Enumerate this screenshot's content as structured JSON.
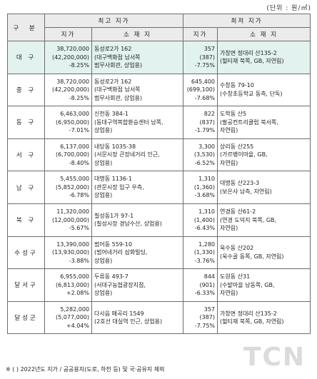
{
  "unit": "(단위 : 원/㎡)",
  "headers": {
    "gubun": "구 분",
    "highest": "최고 지가",
    "lowest": "최저 지가",
    "price": "지가",
    "location": "소 재 지"
  },
  "rows": [
    {
      "district": "대 구",
      "high_price": "38,720,000",
      "high_prev": "(42,200,000)",
      "high_change": "-8.25%",
      "high_loc1": "동성로2가 162",
      "high_loc2": "(대구백화점 남서쪽",
      "high_loc3": "범무사회관, 상업용)",
      "low_price": "357",
      "low_prev": "(387)",
      "low_change": "-7.75%",
      "low_loc1": "가창면 정대리 산135-2",
      "low_loc2": "(헐티재 북쪽, GB, 자연림)",
      "low_loc3": ""
    },
    {
      "district": "중 구",
      "high_price": "38,720,000",
      "high_prev": "(42,200,000)",
      "high_change": "-8.25%",
      "high_loc1": "동성로2가 162",
      "high_loc2": "(대구백화점 남서쪽",
      "high_loc3": "범무사회관, 상업용)",
      "low_price": "645,400",
      "low_prev": "(699,100)",
      "low_change": "-7.68%",
      "low_loc1": "수창동 79-10",
      "low_loc2": "(수창초등학교 동측, 단독)",
      "low_loc3": ""
    },
    {
      "district": "동 구",
      "high_price": "6,463,000",
      "high_prev": "(6,950,000)",
      "high_change": "-7.01%",
      "high_loc1": "신천동 384-1",
      "high_loc2": "(동대구역복합환승센터 남쪽,",
      "high_loc3": "상업용)",
      "low_price": "822",
      "low_prev": "(837)",
      "low_change": "-1.79%",
      "low_loc1": "도학동 산5",
      "low_loc2": "(팔공컨트리클럽 북서쪽,",
      "low_loc3": "자연림)"
    },
    {
      "district": "서 구",
      "high_price": "6,137,000",
      "high_prev": "(6,700,000)",
      "high_change": "-8.40%",
      "high_loc1": "내당동 1035-38",
      "high_loc2": "(서문시장 큰장네거리 인근,",
      "high_loc3": "상업용)",
      "low_price": "3,300",
      "low_prev": "(3,530)",
      "low_change": "-6.52%",
      "low_loc1": "상리동 산255",
      "low_loc2": "(가르뱅이마을, GB,",
      "low_loc3": "자연림)"
    },
    {
      "district": "남 구",
      "high_price": "5,455,000",
      "high_prev": "(5,852,000)",
      "high_change": "-6.78%",
      "high_loc1": "대명동 1136-1",
      "high_loc2": "(관문시장 입구 우측,",
      "high_loc3": "상업용)",
      "low_price": "1,310",
      "low_prev": "(1,360)",
      "low_change": "-3.68%",
      "low_loc1": "대명동 산223-3",
      "low_loc2": "(보은사 남측, 자연림)",
      "low_loc3": ""
    },
    {
      "district": "북 구",
      "high_price": "11,320,000",
      "high_prev": "(12,000,000)",
      "high_change": "-5.67%",
      "high_loc1": "칠성동1가 97-1",
      "high_loc2": "(칠성시장 경남수산, 상업용)",
      "high_loc3": "",
      "low_price": "1,310",
      "low_prev": "(1,400)",
      "low_change": "-6.43%",
      "low_loc1": "연경동 산61-2",
      "low_loc2": "(연경 도덕지 북쪽, GB,",
      "low_loc3": "자연림)"
    },
    {
      "district": "수성구",
      "high_price": "13,390,000",
      "high_prev": "(13,930,000)",
      "high_change": "-3.88%",
      "high_loc1": "범어동 559-10",
      "high_loc2": "(범어네거리 삼화빌딩,",
      "high_loc3": "상업용)",
      "low_price": "1,280",
      "low_prev": "(1,330)",
      "low_change": "-3.76%",
      "low_loc1": "욱수동 산202",
      "low_loc2": "(욱수골 동쪽, GB, 자연림)",
      "low_loc3": ""
    },
    {
      "district": "달서구",
      "high_price": "6,955,000",
      "high_prev": "(6,813,000)",
      "high_change": "+2.08%",
      "high_loc1": "두류동 493-7",
      "high_loc2": "(서대구농협광장지점,",
      "high_loc3": "상업용)",
      "low_price": "844",
      "low_prev": "(901)",
      "low_change": "-6.33%",
      "low_loc1": "도원동 산31",
      "low_loc2": "(수밭마을 남동쪽, GB,",
      "low_loc3": "자연림)"
    },
    {
      "district": "달성군",
      "high_price": "5,282,000",
      "high_prev": "(5,077,000)",
      "high_change": "+4.04%",
      "high_loc1": "다사읍 매곡리 1549",
      "high_loc2": "(2호선 대실역 인근, 상업용)",
      "high_loc3": "",
      "low_price": "357",
      "low_prev": "(387)",
      "low_change": "-7.75%",
      "low_loc1": "가창면 정대리 산135-2",
      "low_loc2": "(헐티재 북쪽, GB, 자연림)",
      "low_loc3": ""
    }
  ],
  "footnote": "※ ( ) 2022년도 지가 / 공공용지(도로, 하천 등) 및 국·공유지 제외",
  "watermark": "TCN"
}
